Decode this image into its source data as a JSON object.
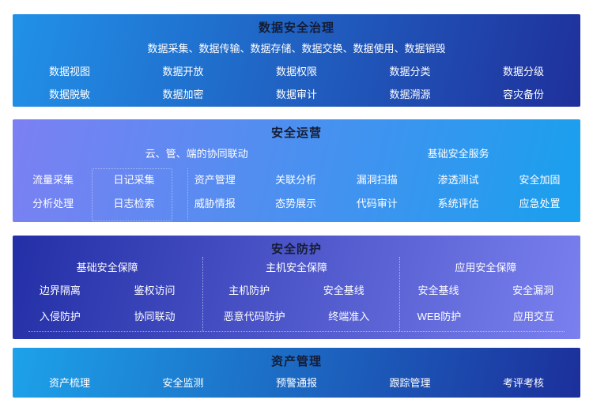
{
  "colors": {
    "title_text": "#151d36",
    "item_text": "#ffffff",
    "panel1_gradient": [
      "#2191e8",
      "#1f309b"
    ],
    "panel2_gradient": [
      "#7c80f2",
      "#19a0ee"
    ],
    "panel3_gradient": [
      "#232fa6",
      "#7a80ee"
    ],
    "panel4_gradient": [
      "#1da2e9",
      "#1c2f9b"
    ]
  },
  "sections": [
    {
      "title": "数据安全治理",
      "subtitle": "数据采集、数据传输、数据存储、数据交换、数据使用、数据销毁",
      "rows": [
        [
          "数据视图",
          "数据开放",
          "数据权限",
          "数据分类",
          "数据分级"
        ],
        [
          "数据脱敏",
          "数据加密",
          "数据审计",
          "数据溯源",
          "容灾备份"
        ]
      ]
    },
    {
      "title": "安全运营",
      "groups": [
        {
          "header": "云、管、端的协同联动",
          "rows": [
            [
              "流量采集",
              "日记采集",
              "资产管理",
              "关联分析"
            ],
            [
              "分析处理",
              "日志检索",
              "威胁情报",
              "态势展示"
            ]
          ]
        },
        {
          "header": "基础安全服务",
          "rows": [
            [
              "漏洞扫描",
              "渗透测试",
              "安全加固"
            ],
            [
              "代码审计",
              "系统评估",
              "应急处置"
            ]
          ]
        }
      ]
    },
    {
      "title": "安全防护",
      "groups": [
        {
          "header": "基础安全保障",
          "rows": [
            [
              "边界隔离",
              "鉴权访问"
            ],
            [
              "入侵防护",
              "协同联动"
            ]
          ]
        },
        {
          "header": "主机安全保障",
          "rows": [
            [
              "主机防护",
              "安全基线"
            ],
            [
              "恶意代码防护",
              "终端准入"
            ]
          ]
        },
        {
          "header": "应用安全保障",
          "rows": [
            [
              "安全基线",
              "安全漏洞"
            ],
            [
              "WEB防护",
              "应用交互"
            ]
          ]
        }
      ]
    },
    {
      "title": "资产管理",
      "rows": [
        [
          "资产梳理",
          "安全监测",
          "预警通报",
          "跟踪管理",
          "考评考核"
        ]
      ]
    }
  ]
}
